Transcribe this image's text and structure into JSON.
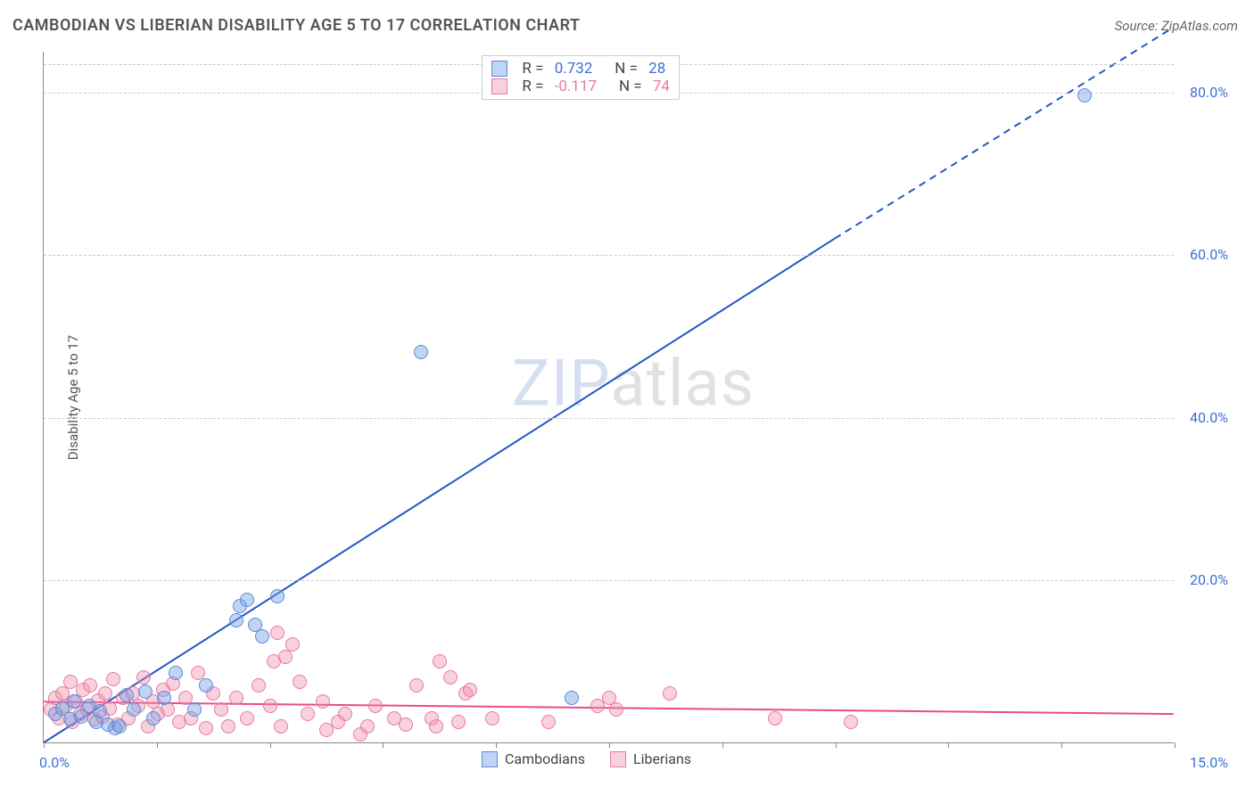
{
  "chart": {
    "type": "scatter",
    "title": "CAMBODIAN VS LIBERIAN DISABILITY AGE 5 TO 17 CORRELATION CHART",
    "source_label": "Source:",
    "source_name": "ZipAtlas.com",
    "ylabel": "Disability Age 5 to 17",
    "watermark_zip": "ZIP",
    "watermark_atlas": "atlas",
    "background_color": "#ffffff",
    "grid_color": "#cccccc",
    "axis_color": "#888888",
    "title_color": "#555555",
    "title_fontsize": 18,
    "label_color": "#555555",
    "tick_label_color": "#3b6fd6",
    "tick_fontsize": 16,
    "xlim": [
      0,
      15
    ],
    "ylim": [
      0,
      85
    ],
    "x_ticks": [
      0,
      1.5,
      3,
      4.5,
      6,
      7.5,
      9,
      10.5,
      12,
      13.5,
      15
    ],
    "x_tick_labels": {
      "0": "0.0%",
      "15": "15.0%"
    },
    "y_ticks": [
      20,
      40,
      60,
      80
    ],
    "y_tick_labels": [
      "20.0%",
      "40.0%",
      "60.0%",
      "80.0%"
    ],
    "series": [
      {
        "name": "Cambodians",
        "fill_color": "rgba(120,160,230,0.45)",
        "stroke_color": "#5a8bd8",
        "line_color": "#2257c5",
        "line_width": 2,
        "marker_radius": 8,
        "R_label": "R =",
        "R_value": "0.732",
        "N_label": "N =",
        "N_value": "28",
        "stat_color": "#3b6fd6",
        "regression": {
          "x1": 0,
          "y1": 0,
          "x2_solid": 10.5,
          "y2_solid": 62,
          "x2_dash": 15,
          "y2_dash": 88
        },
        "points": [
          [
            0.15,
            3.5
          ],
          [
            0.25,
            4.2
          ],
          [
            0.35,
            2.8
          ],
          [
            0.4,
            5.0
          ],
          [
            0.5,
            3.2
          ],
          [
            0.6,
            4.5
          ],
          [
            0.7,
            2.5
          ],
          [
            0.75,
            3.8
          ],
          [
            0.85,
            2.2
          ],
          [
            0.95,
            1.8
          ],
          [
            1.1,
            5.8
          ],
          [
            1.2,
            4.0
          ],
          [
            1.35,
            6.2
          ],
          [
            1.45,
            3.0
          ],
          [
            1.6,
            5.5
          ],
          [
            1.75,
            8.5
          ],
          [
            2.0,
            4.0
          ],
          [
            2.15,
            7.0
          ],
          [
            2.55,
            15.0
          ],
          [
            2.6,
            16.8
          ],
          [
            2.7,
            17.5
          ],
          [
            2.8,
            14.5
          ],
          [
            2.9,
            13.0
          ],
          [
            3.1,
            18.0
          ],
          [
            5.0,
            48.0
          ],
          [
            7.0,
            5.5
          ],
          [
            13.8,
            79.5
          ],
          [
            1.0,
            2.0
          ]
        ]
      },
      {
        "name": "Liberians",
        "fill_color": "rgba(240,140,170,0.4)",
        "stroke_color": "#e77aa0",
        "line_color": "#e94b8a",
        "line_width": 2,
        "marker_radius": 8,
        "R_label": "R =",
        "R_value": "-0.117",
        "N_label": "N =",
        "N_value": "74",
        "stat_color": "#e77aa0",
        "regression": {
          "x1": 0,
          "y1": 5.0,
          "x2_solid": 15,
          "y2_solid": 3.5,
          "x2_dash": 15,
          "y2_dash": 3.5
        },
        "points": [
          [
            0.1,
            4.0
          ],
          [
            0.15,
            5.5
          ],
          [
            0.2,
            3.0
          ],
          [
            0.25,
            6.0
          ],
          [
            0.3,
            4.5
          ],
          [
            0.35,
            7.5
          ],
          [
            0.38,
            2.5
          ],
          [
            0.42,
            5.0
          ],
          [
            0.48,
            3.5
          ],
          [
            0.52,
            6.5
          ],
          [
            0.58,
            4.0
          ],
          [
            0.62,
            7.0
          ],
          [
            0.68,
            2.8
          ],
          [
            0.72,
            5.2
          ],
          [
            0.78,
            3.2
          ],
          [
            0.82,
            6.0
          ],
          [
            0.88,
            4.2
          ],
          [
            0.92,
            7.8
          ],
          [
            0.98,
            2.2
          ],
          [
            1.05,
            5.5
          ],
          [
            1.12,
            3.0
          ],
          [
            1.18,
            6.0
          ],
          [
            1.25,
            4.5
          ],
          [
            1.32,
            8.0
          ],
          [
            1.38,
            2.0
          ],
          [
            1.45,
            5.0
          ],
          [
            1.52,
            3.5
          ],
          [
            1.58,
            6.5
          ],
          [
            1.65,
            4.0
          ],
          [
            1.72,
            7.2
          ],
          [
            1.8,
            2.5
          ],
          [
            1.88,
            5.5
          ],
          [
            1.95,
            3.0
          ],
          [
            2.05,
            8.5
          ],
          [
            2.15,
            1.8
          ],
          [
            2.25,
            6.0
          ],
          [
            2.35,
            4.0
          ],
          [
            2.45,
            2.0
          ],
          [
            2.55,
            5.5
          ],
          [
            2.7,
            3.0
          ],
          [
            2.85,
            7.0
          ],
          [
            3.0,
            4.5
          ],
          [
            3.05,
            10.0
          ],
          [
            3.1,
            13.5
          ],
          [
            3.2,
            10.5
          ],
          [
            3.3,
            12.0
          ],
          [
            3.15,
            2.0
          ],
          [
            3.4,
            7.5
          ],
          [
            3.5,
            3.5
          ],
          [
            3.7,
            5.0
          ],
          [
            3.75,
            1.5
          ],
          [
            3.9,
            2.5
          ],
          [
            4.0,
            3.5
          ],
          [
            4.2,
            1.0
          ],
          [
            4.3,
            2.0
          ],
          [
            4.4,
            4.5
          ],
          [
            4.65,
            3.0
          ],
          [
            4.8,
            2.2
          ],
          [
            4.95,
            7.0
          ],
          [
            5.15,
            3.0
          ],
          [
            5.2,
            2.0
          ],
          [
            5.25,
            10.0
          ],
          [
            5.4,
            8.0
          ],
          [
            5.5,
            2.5
          ],
          [
            5.6,
            6.0
          ],
          [
            5.65,
            6.5
          ],
          [
            5.95,
            3.0
          ],
          [
            6.7,
            2.5
          ],
          [
            7.35,
            4.5
          ],
          [
            7.5,
            5.5
          ],
          [
            7.6,
            4.0
          ],
          [
            8.3,
            6.0
          ],
          [
            9.7,
            3.0
          ],
          [
            10.7,
            2.5
          ]
        ]
      }
    ],
    "bottom_legend": [
      {
        "label": "Cambodians",
        "fill": "rgba(120,160,230,0.45)",
        "stroke": "#5a8bd8"
      },
      {
        "label": "Liberians",
        "fill": "rgba(240,140,170,0.4)",
        "stroke": "#e77aa0"
      }
    ]
  }
}
